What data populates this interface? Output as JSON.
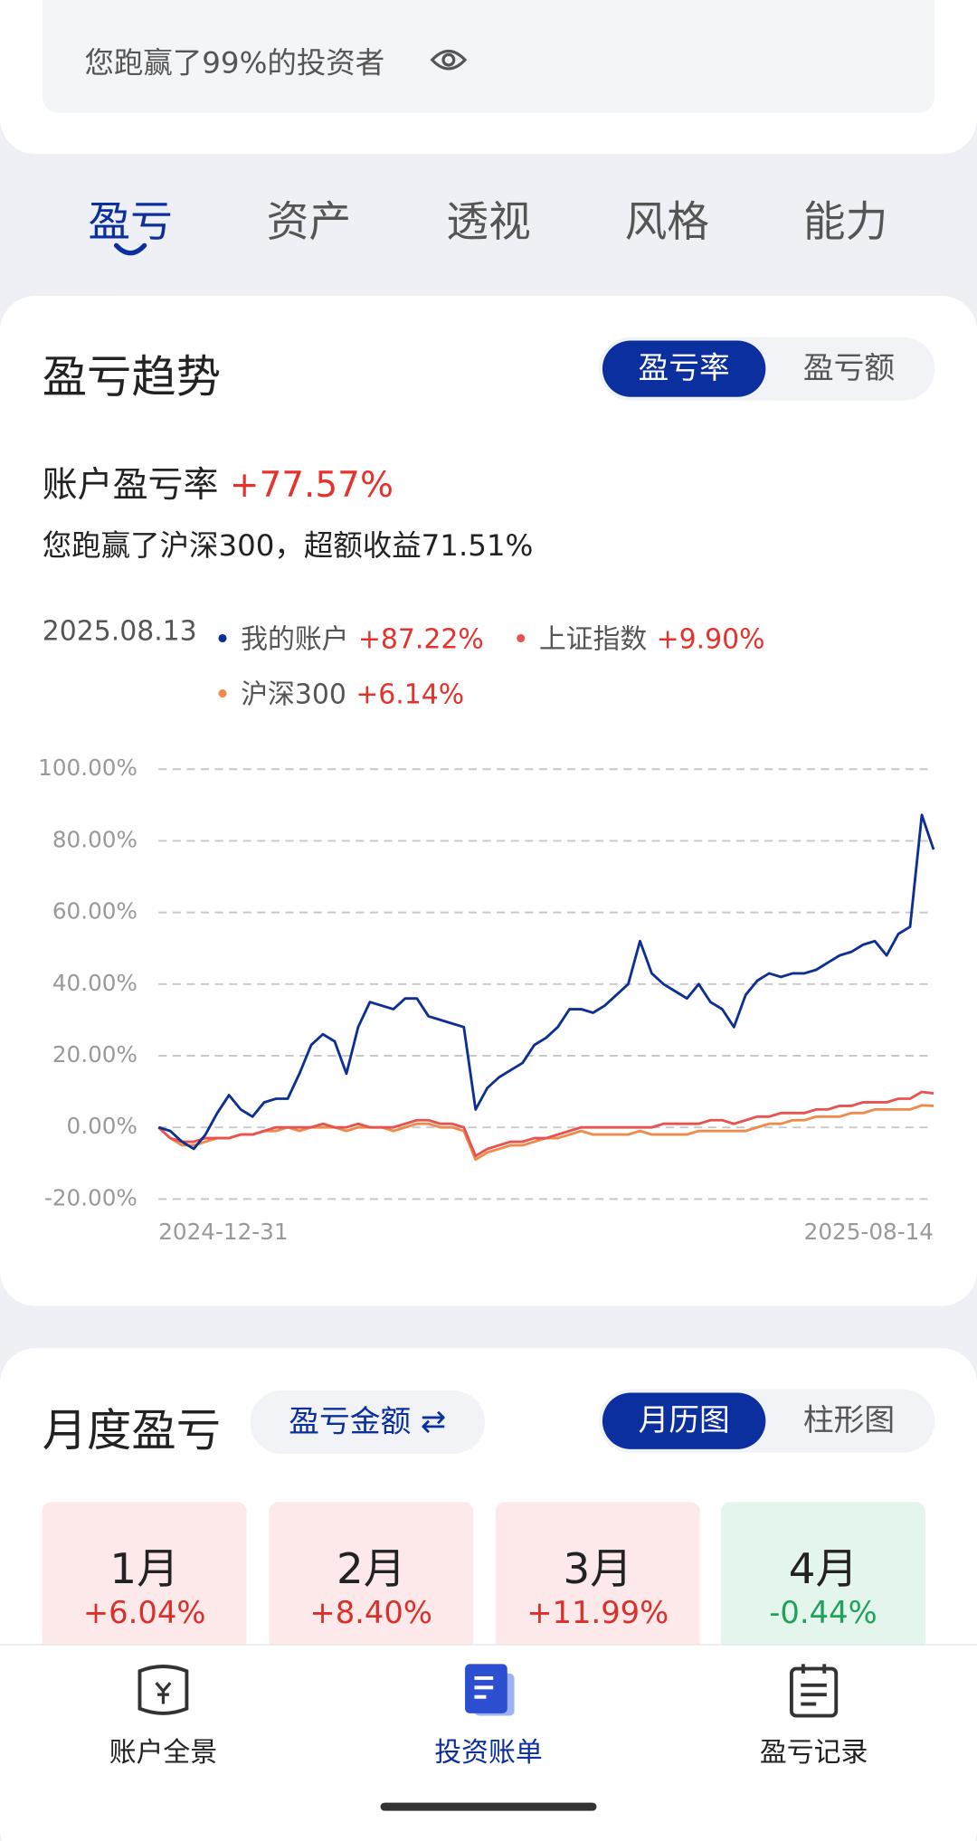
{
  "summary_banner": {
    "text": "您跑赢了99%的投资者"
  },
  "tabs": [
    "盈亏",
    "资产",
    "透视",
    "风格",
    "能力"
  ],
  "trend_section": {
    "title": "盈亏趋势",
    "toggle": [
      "盈亏率",
      "盈亏额"
    ],
    "rate_label": "账户盈亏率",
    "rate_value": "+77.57%",
    "excess_text": "您跑赢了沪深300，超额收益71.51%"
  },
  "chart_data": {
    "type": "line",
    "legend_date": "2025.08.13",
    "categories": [
      "2024-12-31",
      null,
      null,
      null,
      null,
      null,
      null,
      null,
      null,
      null,
      null,
      null,
      null,
      null,
      null,
      null,
      null,
      null,
      null,
      null,
      null,
      null,
      null,
      null,
      null,
      null,
      null,
      null,
      null,
      null,
      null,
      null,
      null,
      null,
      null,
      null,
      null,
      null,
      null,
      null,
      null,
      null,
      null,
      null,
      null,
      null,
      null,
      null,
      null,
      null,
      null,
      null,
      null,
      null,
      null,
      null,
      null,
      null,
      null,
      null,
      null,
      null,
      null,
      null,
      null,
      null,
      "2025-08-14"
    ],
    "series": [
      {
        "name": "我的账户",
        "color": "#0d2f94",
        "legend_value": "+87.22%",
        "values": [
          0,
          -1,
          -4,
          -6,
          -2,
          4,
          9,
          5,
          3,
          7,
          8,
          8,
          15,
          23,
          26,
          24,
          15,
          28,
          35,
          34,
          33,
          36,
          36,
          31,
          30,
          29,
          28,
          5,
          11,
          14,
          16,
          18,
          23,
          25,
          28,
          33,
          33,
          32,
          34,
          37,
          40,
          52,
          43,
          40,
          38,
          36,
          40,
          35,
          33,
          28,
          37,
          41,
          43,
          42,
          43,
          43,
          44,
          46,
          48,
          49,
          51,
          52,
          48,
          54,
          56,
          87.22,
          77.57
        ]
      },
      {
        "name": "上证指数",
        "color": "#e8524f",
        "legend_value": "+9.90%",
        "values": [
          0,
          -3,
          -4,
          -4,
          -3,
          -3,
          -3,
          -2,
          -2,
          -1,
          0,
          0,
          0,
          0,
          1,
          0,
          0,
          1,
          0,
          0,
          0,
          1,
          2,
          2,
          1,
          1,
          0,
          -8,
          -6,
          -5,
          -4,
          -4,
          -3,
          -3,
          -2,
          -1,
          0,
          0,
          0,
          0,
          0,
          0,
          0,
          1,
          1,
          1,
          1,
          2,
          2,
          1,
          2,
          3,
          3,
          4,
          4,
          4,
          5,
          5,
          6,
          6,
          7,
          7,
          7,
          8,
          8,
          9.9,
          9.5
        ]
      },
      {
        "name": "沪深300",
        "color": "#f08a4b",
        "legend_value": "+6.14%",
        "values": [
          0,
          -3,
          -5,
          -5,
          -4,
          -3,
          -3,
          -2,
          -2,
          -1,
          -1,
          0,
          -1,
          0,
          0,
          0,
          -1,
          0,
          0,
          0,
          -1,
          0,
          1,
          1,
          0,
          0,
          -1,
          -9,
          -7,
          -6,
          -5,
          -5,
          -4,
          -3,
          -3,
          -2,
          -1,
          -2,
          -2,
          -2,
          -2,
          -1,
          -2,
          -2,
          -2,
          -2,
          -1,
          -1,
          -1,
          -1,
          -1,
          0,
          1,
          1,
          2,
          2,
          3,
          3,
          3,
          4,
          4,
          5,
          5,
          5,
          5,
          6.14,
          6
        ]
      }
    ],
    "ylim": [
      -20,
      100
    ],
    "yticks": [
      {
        "value": -20,
        "label": "-20.00%"
      },
      {
        "value": 0,
        "label": "0.00%"
      },
      {
        "value": 20,
        "label": "20.00%"
      },
      {
        "value": 40,
        "label": "40.00%"
      },
      {
        "value": 60,
        "label": "60.00%"
      },
      {
        "value": 80,
        "label": "80.00%"
      },
      {
        "value": 100,
        "label": "100.00%"
      }
    ],
    "grid": true
  },
  "monthly_section": {
    "title": "月度盈亏",
    "metric_button": "盈亏金额 ⇄",
    "toggle": [
      "月历图",
      "柱形图"
    ],
    "months": [
      {
        "month": "1月",
        "change": "+6.04%"
      },
      {
        "month": "2月",
        "change": "+8.40%"
      },
      {
        "month": "3月",
        "change": "+11.99%"
      },
      {
        "month": "4月",
        "change": "-0.44%"
      }
    ]
  },
  "bottom_nav": [
    "账户全景",
    "投资账单",
    "盈亏记录"
  ]
}
